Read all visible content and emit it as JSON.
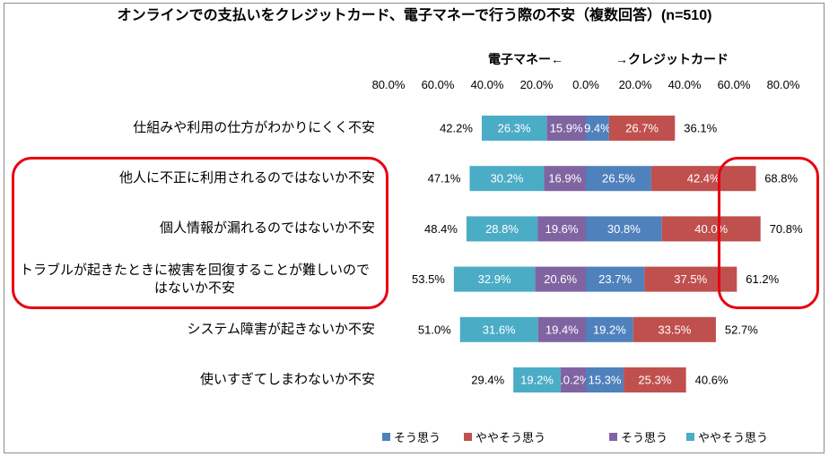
{
  "colors": {
    "highlight": "#E60012"
  },
  "chart_data": {
    "type": "bar",
    "orientation": "horizontal",
    "stacked": true,
    "diverging": true,
    "grid": false,
    "legend_position": "bottom",
    "title": "オンラインでの支払いをクレジットカード、電子マネーで行う際の不安（複数回答）(n=510)",
    "categories": [
      "仕組みや利用の仕方がわかりにくく不安",
      "他人に不正に利用されるのではないか不安",
      "個人情報が漏れるのではないか不安",
      "トラブルが起きたときに被害を回復することが難しいのではないか不安",
      "システム障害が起きないか不安",
      "使いすぎてしまわないか不安"
    ],
    "xlim": [
      -80,
      80
    ],
    "x_tick_labels": [
      "80.0%",
      "60.0%",
      "40.0%",
      "20.0%",
      "0.0%",
      "20.0%",
      "40.0%",
      "60.0%",
      "80.0%"
    ],
    "left": {
      "label": "電子マネー←",
      "series": [
        {
          "name": "そう思う",
          "color": "#8064A2",
          "values": [
            15.9,
            16.9,
            19.6,
            20.6,
            19.4,
            10.2
          ]
        },
        {
          "name": "ややそう思う",
          "color": "#4BACC6",
          "values": [
            26.3,
            30.2,
            28.8,
            32.9,
            31.6,
            19.2
          ]
        }
      ],
      "totals": [
        42.2,
        47.1,
        48.4,
        53.5,
        51.0,
        29.4
      ]
    },
    "right": {
      "label": "→クレジットカード",
      "series": [
        {
          "name": "そう思う",
          "color": "#4F81BD",
          "values": [
            9.4,
            26.5,
            30.8,
            23.7,
            19.2,
            15.3
          ]
        },
        {
          "name": "ややそう思う",
          "color": "#C0504D",
          "values": [
            26.7,
            42.4,
            40.0,
            37.5,
            33.5,
            25.3
          ]
        }
      ],
      "totals": [
        36.1,
        68.8,
        70.8,
        61.2,
        52.7,
        40.6
      ]
    }
  }
}
